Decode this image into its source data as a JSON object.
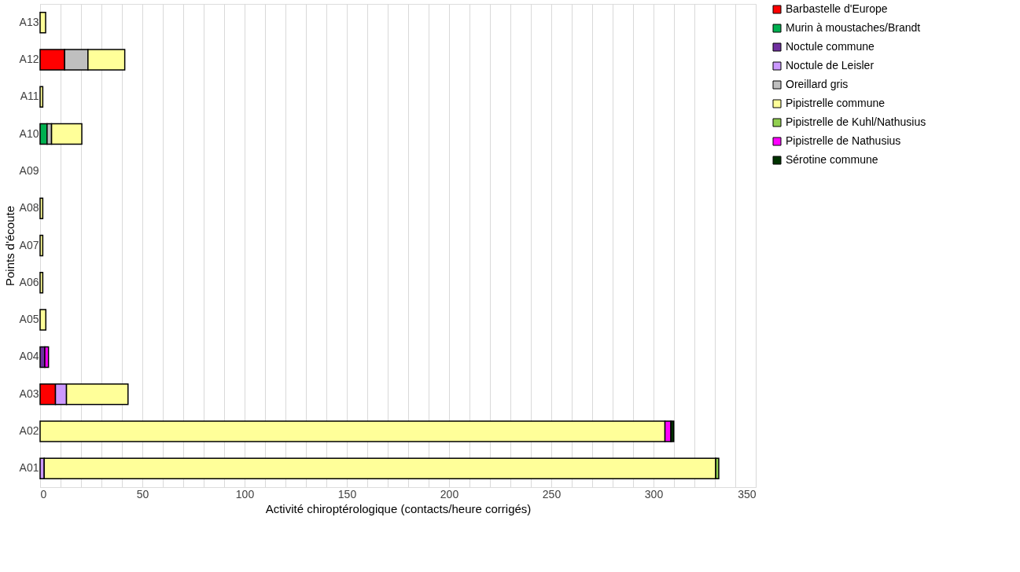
{
  "chart_data": {
    "type": "bar",
    "orientation": "horizontal",
    "stacked": true,
    "xlabel": "Activité chiroptérologique (contacts/heure corrigés)",
    "ylabel": "Points d'écoute",
    "categories": [
      "A13",
      "A12",
      "A11",
      "A10",
      "A09",
      "A08",
      "A07",
      "A06",
      "A05",
      "A04",
      "A03",
      "A02",
      "A01"
    ],
    "series": [
      {
        "name": "Barbastelle d'Europe",
        "color": "#ff0000",
        "values": [
          null,
          12,
          null,
          null,
          null,
          null,
          null,
          null,
          null,
          null,
          7.5,
          null,
          null
        ]
      },
      {
        "name": "Murin à moustaches/Brandt",
        "color": "#00b050",
        "values": [
          null,
          null,
          null,
          3.4,
          null,
          null,
          null,
          null,
          null,
          null,
          null,
          null,
          null
        ]
      },
      {
        "name": "Noctule commune",
        "color": "#7030a0",
        "values": [
          null,
          null,
          null,
          null,
          null,
          null,
          null,
          null,
          null,
          2.3,
          null,
          null,
          null
        ]
      },
      {
        "name": "Noctule de Leisler",
        "color": "#cc99ff",
        "values": [
          null,
          null,
          null,
          null,
          null,
          null,
          null,
          null,
          null,
          null,
          5.4,
          null,
          2
        ]
      },
      {
        "name": "Oreillard gris",
        "color": "#bfbfbf",
        "values": [
          null,
          11.4,
          null,
          2.2,
          null,
          null,
          null,
          null,
          null,
          null,
          null,
          null,
          null
        ]
      },
      {
        "name": "Pipistrelle commune",
        "color": "#ffff99",
        "values": [
          2.7,
          18,
          1.3,
          14.8,
          null,
          1.3,
          1.3,
          1.3,
          2.8,
          null,
          30.1,
          305.6,
          328.4
        ]
      },
      {
        "name": "Pipistrelle de Kuhl/Nathusius",
        "color": "#92d050",
        "values": [
          null,
          null,
          null,
          null,
          null,
          null,
          null,
          null,
          null,
          null,
          null,
          null,
          1.5
        ]
      },
      {
        "name": "Pipistrelle de Nathusius",
        "color": "#ff00ff",
        "values": [
          null,
          null,
          null,
          null,
          null,
          null,
          null,
          null,
          null,
          1.8,
          null,
          2.9,
          null
        ]
      },
      {
        "name": "Sérotine commune",
        "color": "#003300",
        "values": [
          null,
          null,
          null,
          null,
          null,
          null,
          null,
          null,
          null,
          null,
          null,
          1.4,
          null
        ]
      }
    ],
    "xlim": [
      0,
      350
    ],
    "xticks": [
      0,
      {
        "value": 10,
        "label": null
      },
      {
        "value": 20,
        "label": null
      },
      {
        "value": 30,
        "label": null
      },
      {
        "value": 40,
        "label": null
      },
      50,
      {
        "value": 60,
        "label": null
      },
      {
        "value": 70,
        "label": null
      },
      {
        "value": 80,
        "label": null
      },
      {
        "value": 90,
        "label": null
      },
      100,
      {
        "value": 110,
        "label": null
      },
      {
        "value": 120,
        "label": null
      },
      {
        "value": 130,
        "label": null
      },
      {
        "value": 140,
        "label": null
      },
      150,
      {
        "value": 160,
        "label": null
      },
      {
        "value": 170,
        "label": null
      },
      {
        "value": 180,
        "label": null
      },
      {
        "value": 190,
        "label": null
      },
      200,
      {
        "value": 210,
        "label": null
      },
      {
        "value": 220,
        "label": null
      },
      {
        "value": 230,
        "label": null
      },
      {
        "value": 240,
        "label": null
      },
      250,
      {
        "value": 260,
        "label": null
      },
      {
        "value": 270,
        "label": null
      },
      {
        "value": 280,
        "label": null
      },
      {
        "value": 290,
        "label": null
      },
      300,
      {
        "value": 310,
        "label": null
      },
      {
        "value": 320,
        "label": null
      },
      {
        "value": 330,
        "label": null
      },
      {
        "value": 340,
        "label": null
      },
      350
    ],
    "grid": "x",
    "legend": "right"
  }
}
